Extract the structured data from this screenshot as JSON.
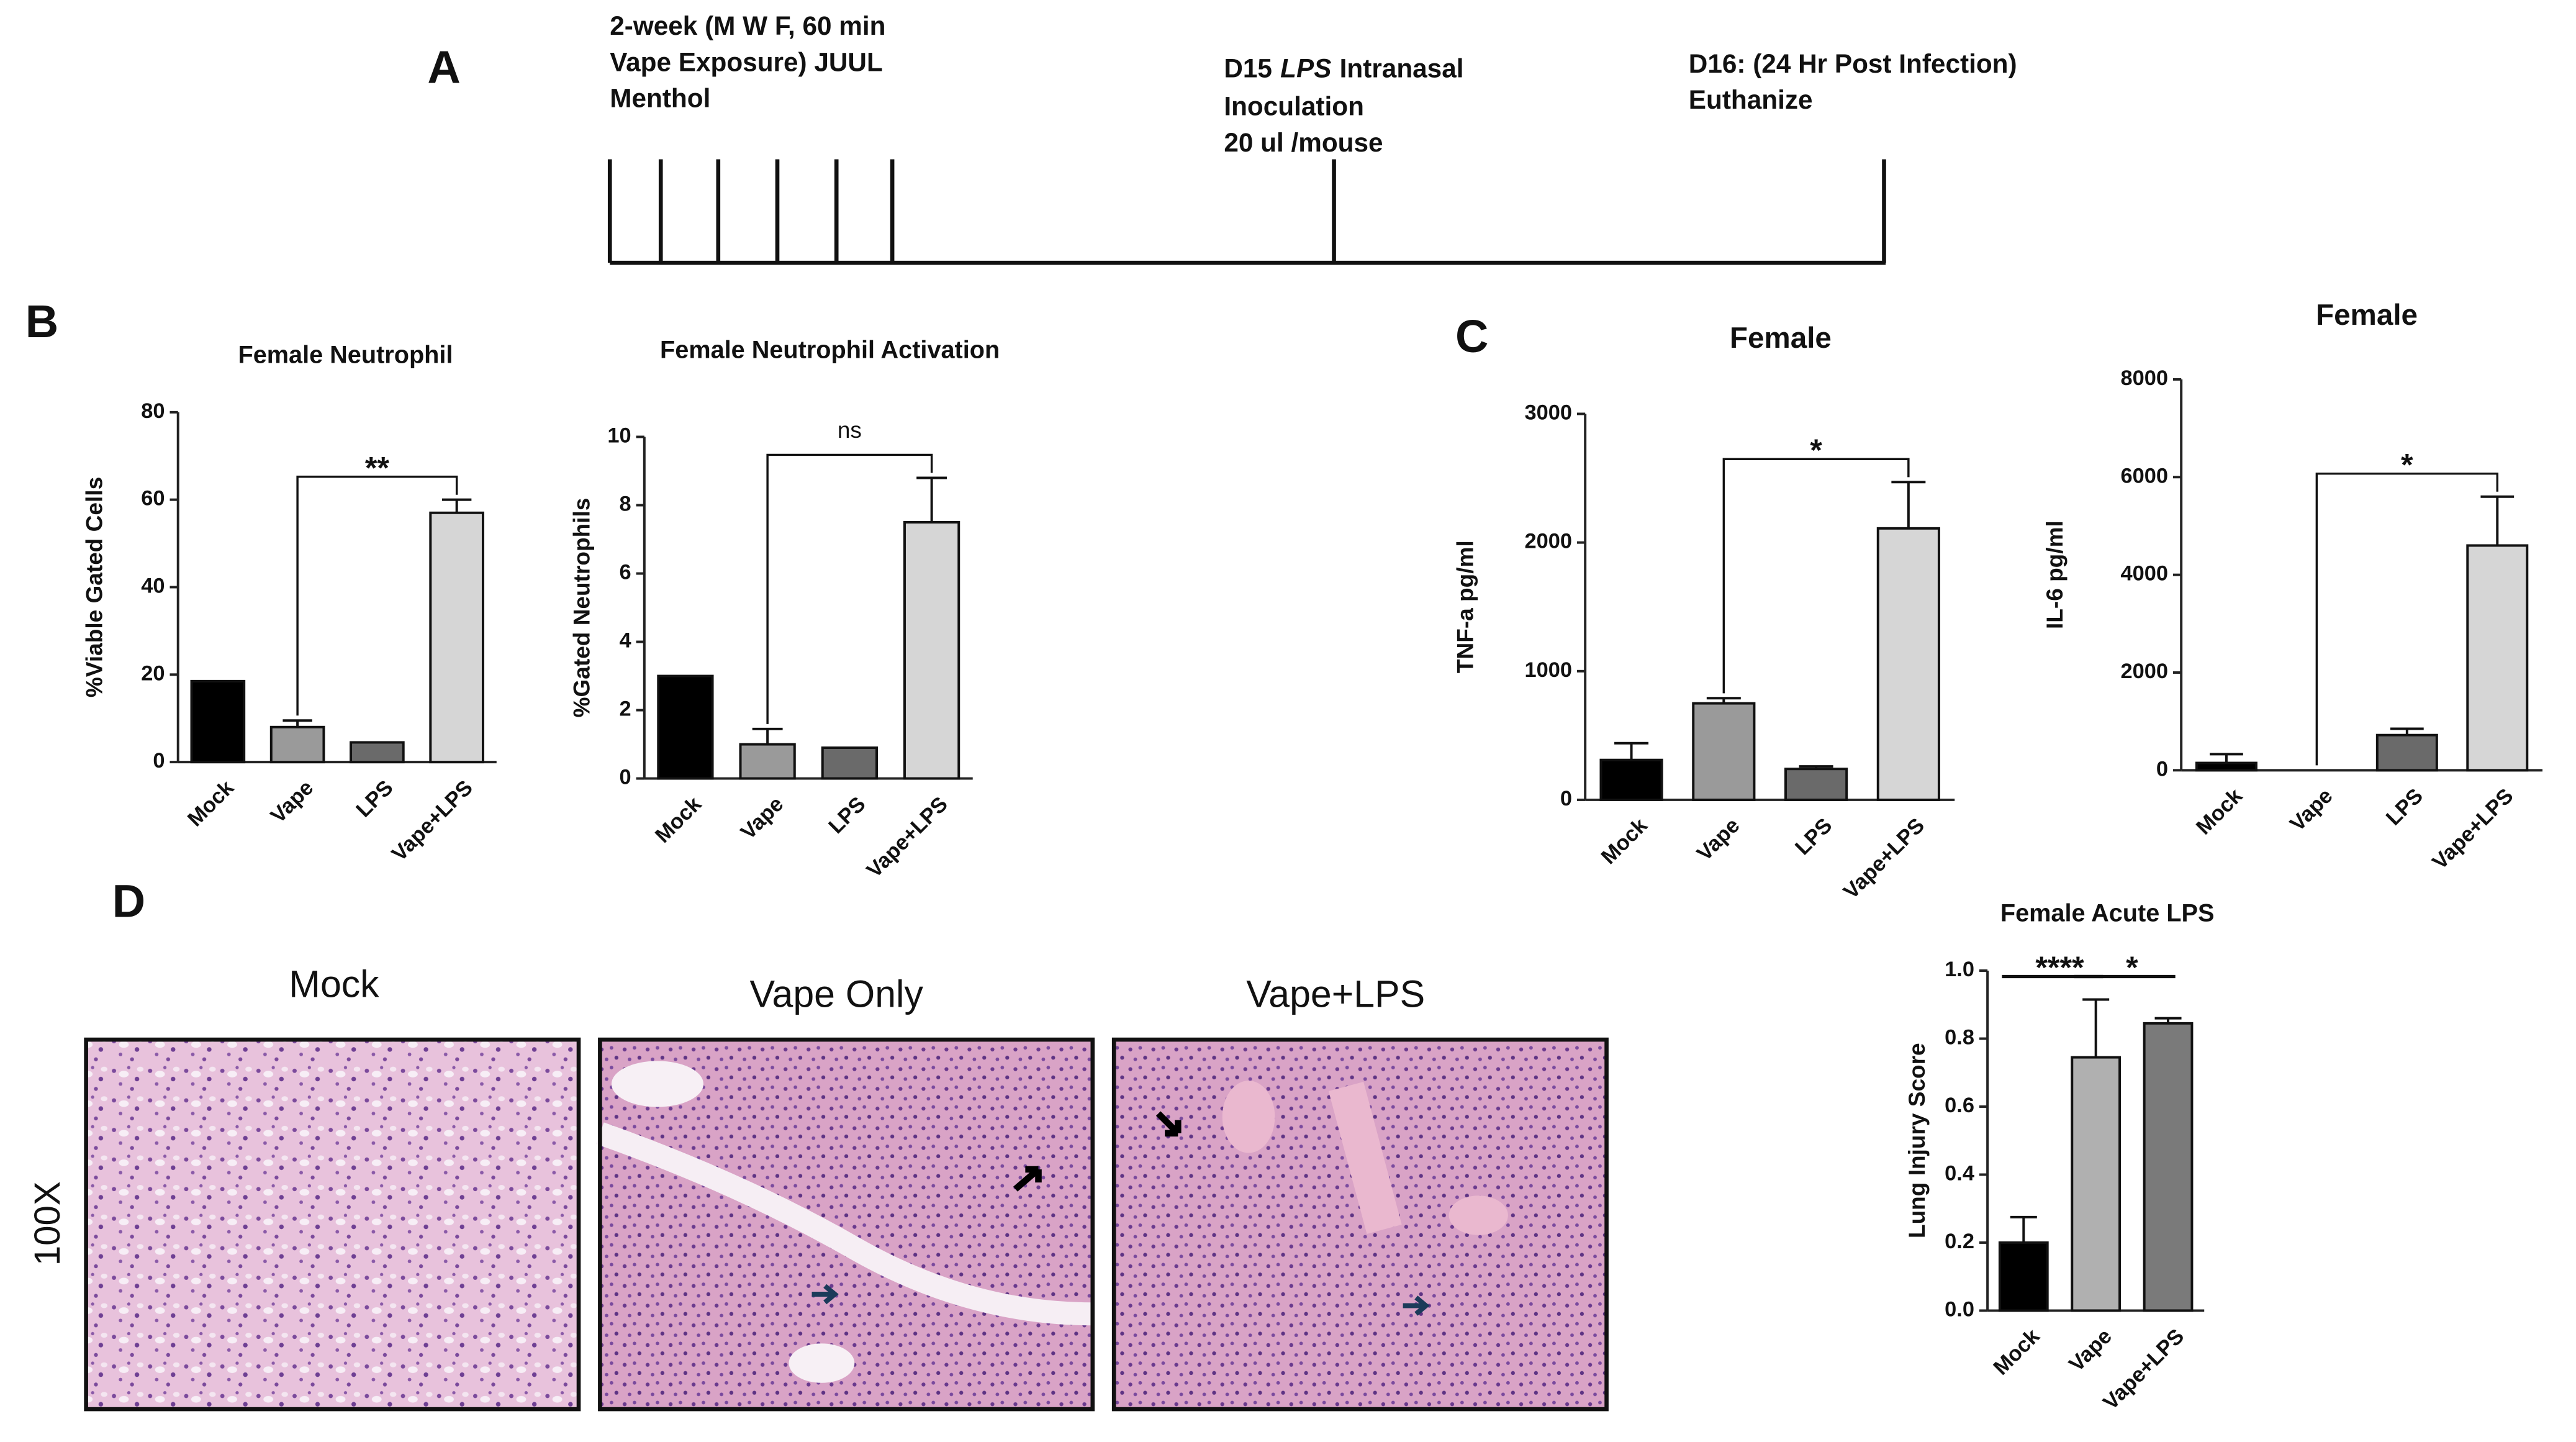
{
  "panels": {
    "a": "A",
    "b": "B",
    "c": "C",
    "d": "D"
  },
  "timeline": {
    "events": [
      {
        "lines": [
          [
            "2-week (M W F, 60 min"
          ],
          [
            "Vape Exposure) JUUL"
          ],
          [
            "Menthol"
          ]
        ]
      },
      {
        "lines": [
          [
            "D15",
            "LPS",
            "Intranasal"
          ],
          [
            "Inoculation"
          ],
          [
            "20 ul /mouse"
          ]
        ]
      },
      {
        "lines": [
          [
            "D16: (24 Hr Post Infection)"
          ],
          [
            "Euthanize"
          ]
        ]
      }
    ]
  },
  "histology": {
    "magnification": "100X",
    "panels": [
      "Mock",
      "Vape Only",
      "Vape+LPS"
    ]
  },
  "chart_data": [
    {
      "type": "bar",
      "title": "Female Neutrophil",
      "y_label": "%Viable Gated Cells",
      "categories": [
        "Mock",
        "Vape",
        "LPS",
        "Vape+LPS"
      ],
      "values": [
        18.5,
        8,
        4.5,
        57
      ],
      "errors": [
        null,
        1.5,
        null,
        3
      ],
      "colors": [
        "#000000",
        "#9a9a9a",
        "#6a6a6a",
        "#d6d6d6"
      ],
      "ylim": [
        0,
        80
      ],
      "yticks": [
        0,
        20,
        40,
        60,
        80
      ],
      "comparisons": [
        {
          "between": [
            "Vape",
            "Vape+LPS"
          ],
          "label": "**",
          "bracket": true
        }
      ]
    },
    {
      "type": "bar",
      "title": "Female Neutrophil Activation",
      "y_label": "%Gated Neutrophils",
      "categories": [
        "Mock",
        "Vape",
        "LPS",
        "Vape+LPS"
      ],
      "values": [
        3,
        1,
        0.9,
        7.5
      ],
      "errors": [
        null,
        0.45,
        null,
        1.3
      ],
      "colors": [
        "#000000",
        "#9a9a9a",
        "#6a6a6a",
        "#d6d6d6"
      ],
      "ylim": [
        0,
        10
      ],
      "yticks": [
        0,
        2,
        4,
        6,
        8,
        10
      ],
      "comparisons": [
        {
          "between": [
            "Vape",
            "Vape+LPS"
          ],
          "label": "ns",
          "bracket": true
        }
      ]
    },
    {
      "type": "bar",
      "title": "Female",
      "y_label": "TNF-a pg/ml",
      "categories": [
        "Mock",
        "Vape",
        "LPS",
        "Vape+LPS"
      ],
      "values": [
        310,
        750,
        240,
        2110
      ],
      "errors": [
        130,
        40,
        20,
        360
      ],
      "colors": [
        "#000000",
        "#9a9a9a",
        "#6a6a6a",
        "#d6d6d6"
      ],
      "ylim": [
        0,
        3000
      ],
      "yticks": [
        0,
        1000,
        2000,
        3000
      ],
      "comparisons": [
        {
          "between": [
            "Vape",
            "Vape+LPS"
          ],
          "label": "*",
          "bracket": true
        }
      ]
    },
    {
      "type": "bar",
      "title": "Female",
      "y_label": "IL-6 pg/ml",
      "categories": [
        "Mock",
        "Vape",
        "LPS",
        "Vape+LPS"
      ],
      "values": [
        150,
        0,
        720,
        4600
      ],
      "errors": [
        180,
        null,
        130,
        1000
      ],
      "colors": [
        "#000000",
        "#9a9a9a",
        "#6a6a6a",
        "#d6d6d6"
      ],
      "ylim": [
        0,
        8000
      ],
      "yticks": [
        0,
        2000,
        4000,
        6000,
        8000
      ],
      "comparisons": [
        {
          "between": [
            "Vape",
            "Vape+LPS"
          ],
          "label": "*",
          "bracket": true
        }
      ]
    },
    {
      "type": "bar",
      "title": "Female Acute LPS",
      "y_label": "Lung Injury Score",
      "categories": [
        "Mock",
        "Vape",
        "Vape+LPS"
      ],
      "values": [
        0.2,
        0.745,
        0.845
      ],
      "errors": [
        0.075,
        0.17,
        0.015
      ],
      "colors": [
        "#000000",
        "#b0b0b0",
        "#7a7a7a"
      ],
      "ylim": [
        0,
        1
      ],
      "yticks": [
        {
          "value": 0,
          "label": "0.0"
        },
        0.2,
        0.4,
        0.6,
        0.8,
        {
          "value": 1,
          "label": "1.0"
        }
      ],
      "comparisons": [
        {
          "between": [
            "Mock",
            "Vape"
          ],
          "label": "****",
          "bracket": false
        },
        {
          "between": [
            "Vape",
            "Vape+LPS"
          ],
          "label": "*",
          "bracket": false
        }
      ]
    }
  ]
}
